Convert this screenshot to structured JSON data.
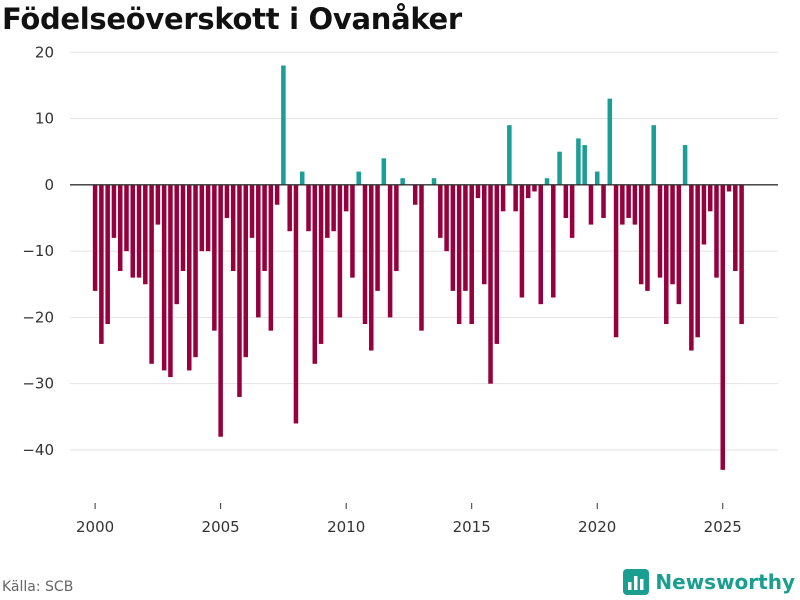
{
  "chart_data": {
    "type": "bar",
    "title": "Födelseöverskott i Ovanåker",
    "xlabel": "",
    "ylabel": "",
    "ylim": [
      -48,
      22
    ],
    "xlim": [
      1999.0,
      2027.2
    ],
    "yticks": [
      20,
      10,
      0,
      -10,
      -20,
      -30,
      -40
    ],
    "ytick_labels": [
      "20",
      "10",
      "0",
      "−10",
      "−20",
      "−30",
      "−40"
    ],
    "xticks": [
      2000,
      2005,
      2010,
      2015,
      2020,
      2025
    ],
    "xtick_labels": [
      "2000",
      "2005",
      "2010",
      "2015",
      "2020",
      "2025"
    ],
    "frequency": "quarterly",
    "start": 2000.0,
    "step": 0.25,
    "colors": {
      "positive": "#1a9e95",
      "negative": "#96003c"
    },
    "values": [
      -16,
      -24,
      -21,
      -8,
      -13,
      -10,
      -14,
      -14,
      -15,
      -27,
      -6,
      -28,
      -29,
      -18,
      -13,
      -28,
      -26,
      -10,
      -10,
      -22,
      -38,
      -5,
      -13,
      -32,
      -26,
      -8,
      -20,
      -13,
      -22,
      -3,
      18,
      -7,
      -36,
      2,
      -7,
      -27,
      -24,
      -8,
      -7,
      -20,
      -4,
      -14,
      2,
      -21,
      -25,
      -16,
      4,
      -20,
      -13,
      1,
      0,
      -3,
      -22,
      0,
      1,
      -8,
      -10,
      -16,
      -21,
      -16,
      -21,
      -2,
      -15,
      -30,
      -24,
      -4,
      9,
      -4,
      -17,
      -2,
      -1,
      -18,
      1,
      -17,
      5,
      -5,
      -8,
      7,
      6,
      -6,
      2,
      -5,
      13,
      -23,
      -6,
      -5,
      -6,
      -15,
      -16,
      9,
      -14,
      -21,
      -15,
      -18,
      6,
      -25,
      -23,
      -9,
      -4,
      -14,
      -43,
      -1,
      -13,
      -21
    ]
  },
  "footer": {
    "source": "Källa: SCB",
    "brand": "Newsworthy",
    "brand_icon": "bar-chart-logo-icon"
  }
}
